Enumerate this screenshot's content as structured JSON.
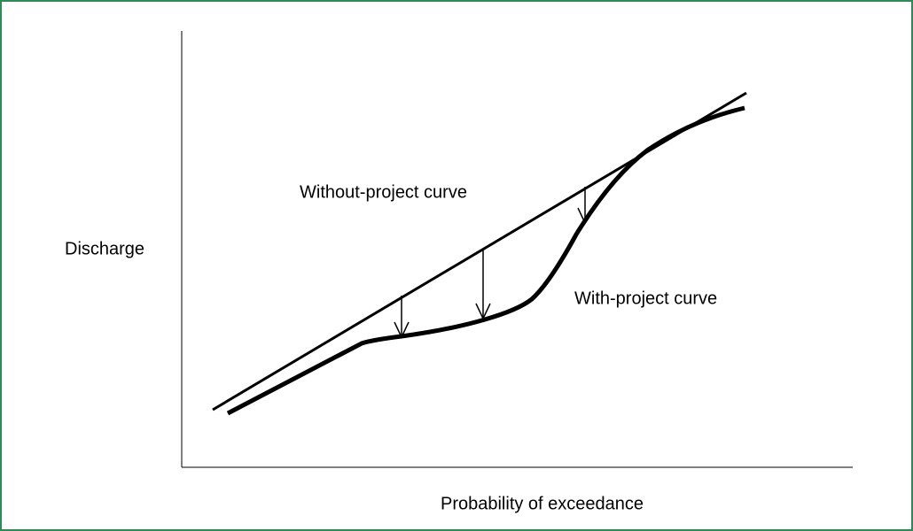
{
  "axes": {
    "y_label": "Discharge",
    "x_label": "Probability of exceedance"
  },
  "curves": {
    "without_project": "Without-project curve",
    "with_project": "With-project curve"
  }
}
